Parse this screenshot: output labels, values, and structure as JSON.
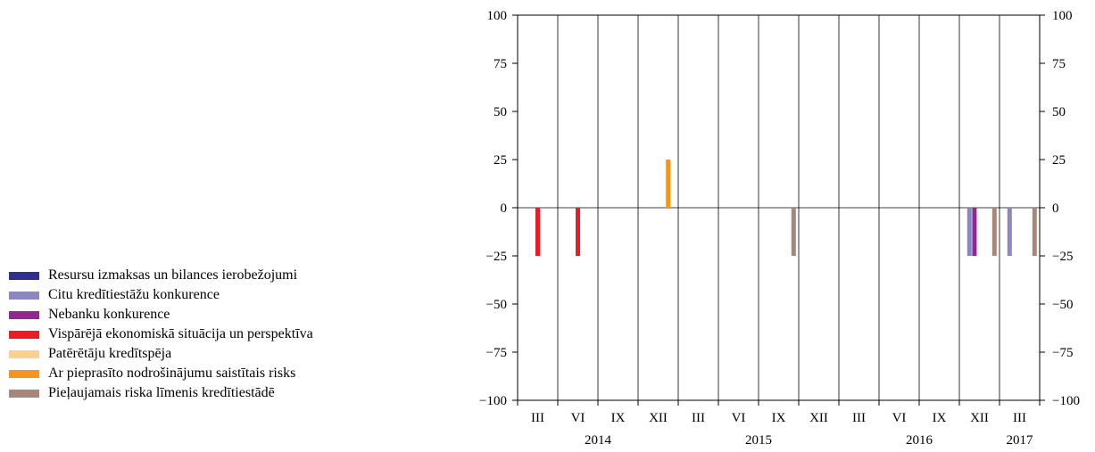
{
  "legend": [
    {
      "label": "Resursu izmaksas un bilances ierobežojumi",
      "color": "#2e3192"
    },
    {
      "label": "Citu kredītiestāžu konkurence",
      "color": "#8c86c4"
    },
    {
      "label": "Nebanku konkurence",
      "color": "#92278f"
    },
    {
      "label": "Vispārējā ekonomiskā situācija un perspektīva",
      "color": "#ed1c24"
    },
    {
      "label": "Patērētāju kredītspēja",
      "color": "#fdd08f"
    },
    {
      "label": "Ar pieprasīto nodrošinājumu saistītais risks",
      "color": "#f7941d"
    },
    {
      "label": "Pieļaujamais riska līmenis kredītiestādē",
      "color": "#a7877a"
    }
  ],
  "chart_data": {
    "type": "bar",
    "title": "",
    "xlabel": "",
    "ylabel": "",
    "ylim": [
      -100,
      100
    ],
    "yticks": [
      100,
      75,
      50,
      25,
      0,
      -25,
      -50,
      -75,
      -100
    ],
    "ytick_labels": [
      "100",
      "75",
      "50",
      "25",
      "0",
      "−25",
      "−50",
      "−75",
      "−100"
    ],
    "categories": [
      "III",
      "VI",
      "IX",
      "XII",
      "III",
      "VI",
      "IX",
      "XII",
      "III",
      "VI",
      "IX",
      "XII",
      "III"
    ],
    "years": [
      {
        "label": "2014",
        "start": 0,
        "end": 3
      },
      {
        "label": "2015",
        "start": 4,
        "end": 7
      },
      {
        "label": "2016",
        "start": 8,
        "end": 11
      },
      {
        "label": "2017",
        "start": 12,
        "end": 12
      }
    ],
    "grid": true,
    "legend_position": "left",
    "series": [
      {
        "name": "Resursu izmaksas un bilances ierobežojumi",
        "values": [
          0,
          0,
          0,
          0,
          0,
          0,
          0,
          0,
          0,
          0,
          0,
          0,
          0
        ]
      },
      {
        "name": "Citu kredītiestāžu konkurence",
        "values": [
          0,
          0,
          0,
          0,
          0,
          0,
          0,
          0,
          0,
          0,
          0,
          -25,
          -25
        ]
      },
      {
        "name": "Nebanku konkurence",
        "values": [
          0,
          0,
          0,
          0,
          0,
          0,
          0,
          0,
          0,
          0,
          0,
          -25,
          0
        ]
      },
      {
        "name": "Vispārējā ekonomiskā situācija un perspektīva",
        "values": [
          -25,
          -25,
          0,
          0,
          0,
          0,
          0,
          0,
          0,
          0,
          0,
          0,
          0
        ]
      },
      {
        "name": "Patērētāju kredītspēja",
        "values": [
          0,
          0,
          0,
          0,
          0,
          0,
          0,
          0,
          0,
          0,
          0,
          0,
          0
        ]
      },
      {
        "name": "Ar pieprasīto nodrošinājumu saistītais risks",
        "values": [
          0,
          0,
          0,
          25,
          0,
          0,
          0,
          0,
          0,
          0,
          0,
          0,
          0
        ]
      },
      {
        "name": "Pieļaujamais riska līmenis kredītiestādē",
        "values": [
          0,
          0,
          0,
          0,
          0,
          0,
          -25,
          0,
          0,
          0,
          0,
          -25,
          -25
        ]
      }
    ]
  }
}
